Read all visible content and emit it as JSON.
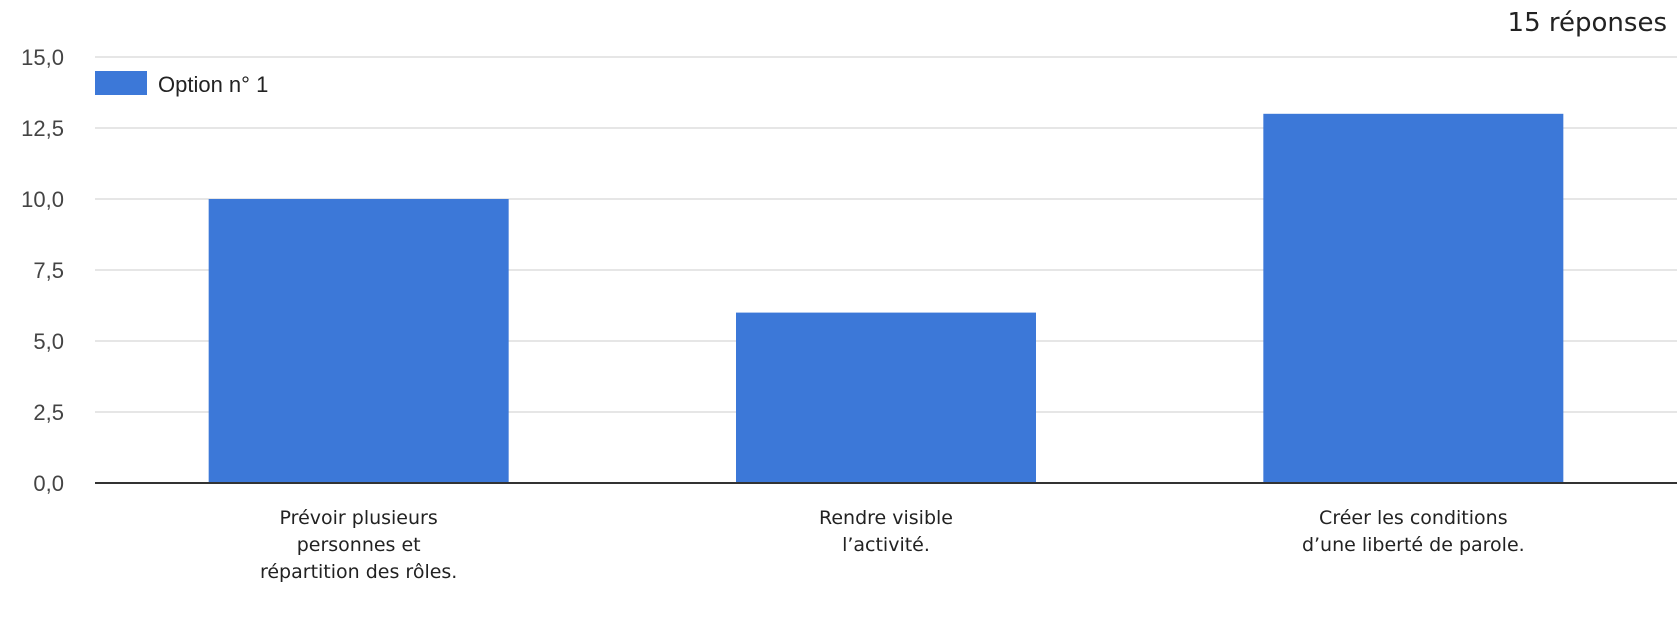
{
  "header": {
    "responses": "15 réponses"
  },
  "chart_data": {
    "type": "bar",
    "categories": [
      [
        "Prévoir plusieurs",
        "personnes et",
        "répartition des rôles."
      ],
      [
        "Rendre visible",
        "l’activité."
      ],
      [
        "Créer les conditions",
        "d’une liberté de parole."
      ]
    ],
    "series": [
      {
        "name": "Option n° 1",
        "color": "#3c78d8",
        "values": [
          10,
          6,
          13
        ]
      }
    ],
    "yticks": [
      "0,0",
      "2,5",
      "5,0",
      "7,5",
      "10,0",
      "12,5",
      "15,0"
    ],
    "ylim": [
      0,
      15
    ],
    "grid": true,
    "legend_position": "top-left"
  }
}
